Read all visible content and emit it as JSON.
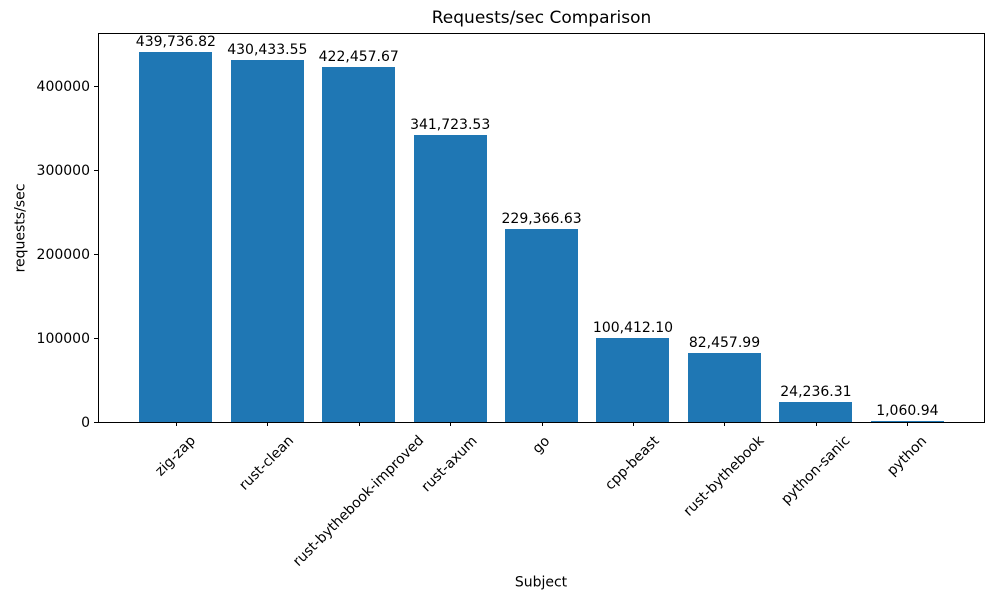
{
  "chart_data": {
    "type": "bar",
    "title": "Requests/sec Comparison",
    "xlabel": "Subject",
    "ylabel": "requests/sec",
    "categories": [
      "zig-zap",
      "rust-clean",
      "rust-bythebook-improved",
      "rust-axum",
      "go",
      "cpp-beast",
      "rust-bythebook",
      "python-sanic",
      "python"
    ],
    "values": [
      439736.82,
      430433.55,
      422457.67,
      341723.53,
      229366.63,
      100412.1,
      82457.99,
      24236.31,
      1060.94
    ],
    "value_labels": [
      "439,736.82",
      "430,433.55",
      "422,457.67",
      "341,723.53",
      "229,366.63",
      "100,412.10",
      "82,457.99",
      "24,236.31",
      "1,060.94"
    ],
    "yticks": [
      0,
      100000,
      200000,
      300000,
      400000
    ],
    "ytick_labels": [
      "0",
      "100000",
      "200000",
      "300000",
      "400000"
    ],
    "ylim": [
      0,
      461724
    ],
    "bar_color": "#1f77b4",
    "grid": false,
    "legend": null
  }
}
